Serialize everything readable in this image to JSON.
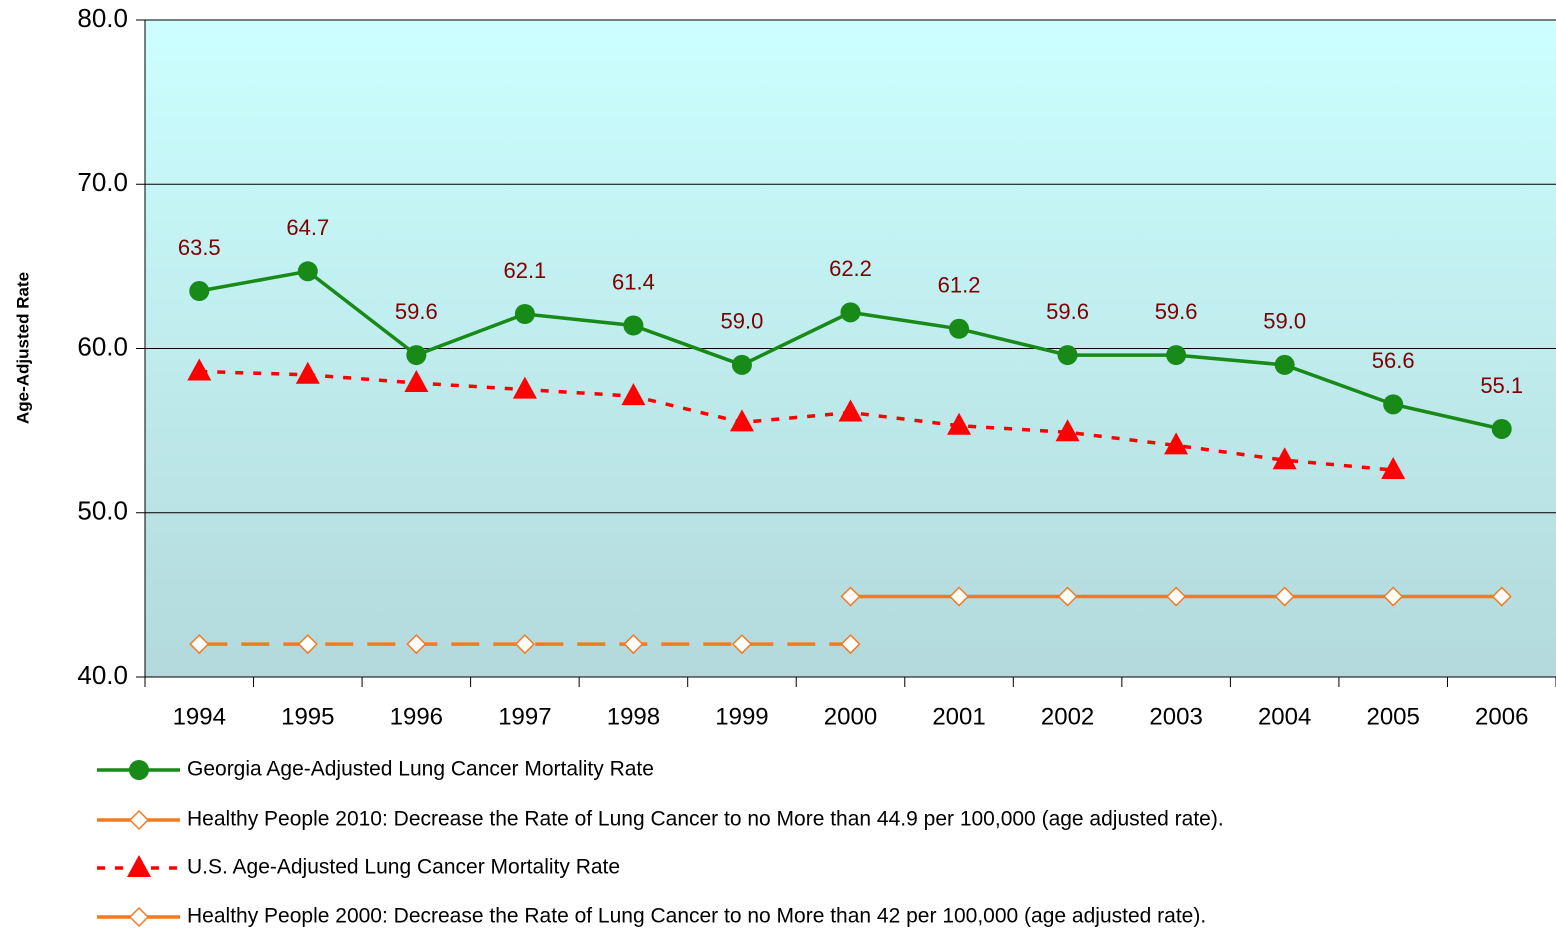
{
  "chart_data": {
    "type": "line",
    "y_label": "Age-Adjusted Rate",
    "categories": [
      "1994",
      "1995",
      "1996",
      "1997",
      "1998",
      "1999",
      "2000",
      "2001",
      "2002",
      "2003",
      "2004",
      "2005",
      "2006"
    ],
    "ylim": [
      40,
      80
    ],
    "yticks": [
      {
        "value": 40,
        "label": "40.0"
      },
      {
        "value": 50,
        "label": "50.0"
      },
      {
        "value": 60,
        "label": "60.0"
      },
      {
        "value": 70,
        "label": "70.0"
      },
      {
        "value": 80,
        "label": "80.0"
      }
    ],
    "grid": true,
    "legend": "bottom",
    "series": [
      {
        "name": "Georgia Age-Adjusted Lung Cancer Mortality Rate",
        "color": "#178a17",
        "marker": "circle",
        "dash": false,
        "label_position": "above",
        "label_color": "#800000",
        "values": [
          63.5,
          64.7,
          59.6,
          62.1,
          61.4,
          59.0,
          62.2,
          61.2,
          59.6,
          59.6,
          59.0,
          56.6,
          55.1
        ],
        "value_labels": [
          "63.5",
          "64.7",
          "59.6",
          "62.1",
          "61.4",
          "59.0",
          "62.2",
          "61.2",
          "59.6",
          "59.6",
          "59.0",
          "56.6",
          "55.1"
        ]
      },
      {
        "name": "Healthy People 2010: Decrease the Rate of Lung Cancer to no More than 44.9 per 100,000 (age adjusted rate).",
        "color": "#f47920",
        "marker": "diamond",
        "dash": false,
        "values": [
          null,
          null,
          null,
          null,
          null,
          null,
          44.9,
          44.9,
          44.9,
          44.9,
          44.9,
          44.9,
          44.9
        ]
      },
      {
        "name": "U.S. Age-Adjusted Lung Cancer Mortality Rate",
        "color": "#ff0000",
        "marker": "triangle",
        "dash": true,
        "label_position": "below",
        "label_color": "#800080",
        "values": [
          58.6,
          58.4,
          57.9,
          57.5,
          57.1,
          55.5,
          56.1,
          55.3,
          54.9,
          54.1,
          53.2,
          52.6,
          null
        ]
      },
      {
        "name": "Healthy People 2000: Decrease the Rate of Lung Cancer to no More than 42 per 100,000 (age adjusted rate).",
        "color": "#f47920",
        "marker": "diamond",
        "dash": true,
        "values": [
          42,
          42,
          42,
          42,
          42,
          42,
          42,
          null,
          null,
          null,
          null,
          null,
          null
        ]
      }
    ]
  }
}
